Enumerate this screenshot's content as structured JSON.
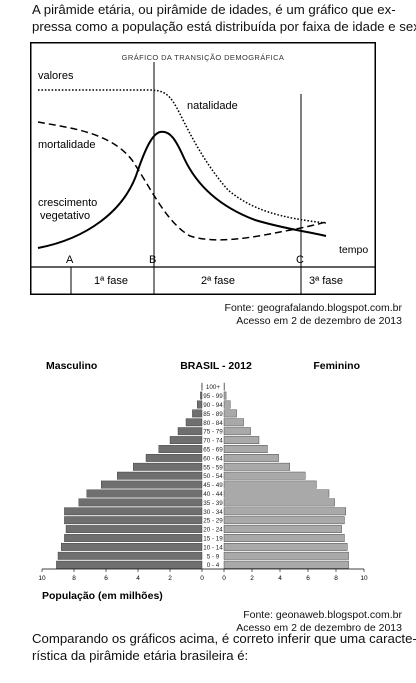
{
  "intro_lines": [
    "A pirâmide etária, ou pirâmide de idades, é um gráfico que ex-",
    "pressa como a população está distribuída por faixa de idade e sexo:"
  ],
  "transition_chart": {
    "title": "GRÁFICO DA TRANSIÇÃO DEMOGRÁFICA",
    "label_values": "valores",
    "label_birth": "natalidade",
    "label_death": "mortalidade",
    "label_growth_1": "crescimento",
    "label_growth_2": "vegetativo",
    "label_time": "tempo",
    "markers": [
      "A",
      "B",
      "C"
    ],
    "phases": [
      "1ª fase",
      "2ª fase",
      "3ª fase"
    ]
  },
  "source1": {
    "line1": "Fonte: geografalando.blogspot.com.br",
    "line2": "Acesso em 2 de dezembro de 2013"
  },
  "pyramid": {
    "title": "BRASIL - 2012",
    "left_label": "Masculino",
    "right_label": "Feminino",
    "x_label": "População (em milhões)",
    "male_color": "#6f6f6f",
    "female_color": "#a9a9a9"
  },
  "chart_data": {
    "type": "bar",
    "title": "BRASIL - 2012",
    "xlabel": "População (em milhões)",
    "categories": [
      "100+",
      "95 - 99",
      "90 - 94",
      "85 - 89",
      "80 - 84",
      "75 - 79",
      "70 - 74",
      "65 - 69",
      "60 - 64",
      "55 - 59",
      "50 - 54",
      "45 - 49",
      "40 - 44",
      "35 - 39",
      "30 - 34",
      "25 - 29",
      "20 - 24",
      "15 - 19",
      "10 - 14",
      "5 - 9",
      "0 - 4"
    ],
    "x_ticks_left": [
      "10",
      "8",
      "6",
      "4",
      "2",
      "0"
    ],
    "x_ticks_right": [
      "0",
      "2",
      "4",
      "6",
      "8",
      "10"
    ],
    "xlim": [
      0,
      10
    ],
    "series": [
      {
        "name": "Masculino",
        "values": [
          0.02,
          0.1,
          0.3,
          0.6,
          1.0,
          1.5,
          2.0,
          2.7,
          3.5,
          4.3,
          5.3,
          6.3,
          7.2,
          7.7,
          8.6,
          8.6,
          8.5,
          8.6,
          8.8,
          9.0,
          9.1
        ]
      },
      {
        "name": "Feminino",
        "values": [
          0.03,
          0.15,
          0.45,
          0.9,
          1.4,
          1.9,
          2.5,
          3.1,
          3.9,
          4.7,
          5.8,
          6.6,
          7.5,
          7.9,
          8.7,
          8.6,
          8.4,
          8.6,
          8.8,
          8.9,
          8.9
        ]
      }
    ]
  },
  "source2": {
    "line1": "Fonte: geonaweb.blogspot.com.br",
    "line2": "Acesso em 2 de dezembro de 2013"
  },
  "outro_lines": [
    "Comparando os gráficos acima, é correto inferir que uma caracte-",
    "rística da pirâmide etária brasileira é:"
  ]
}
